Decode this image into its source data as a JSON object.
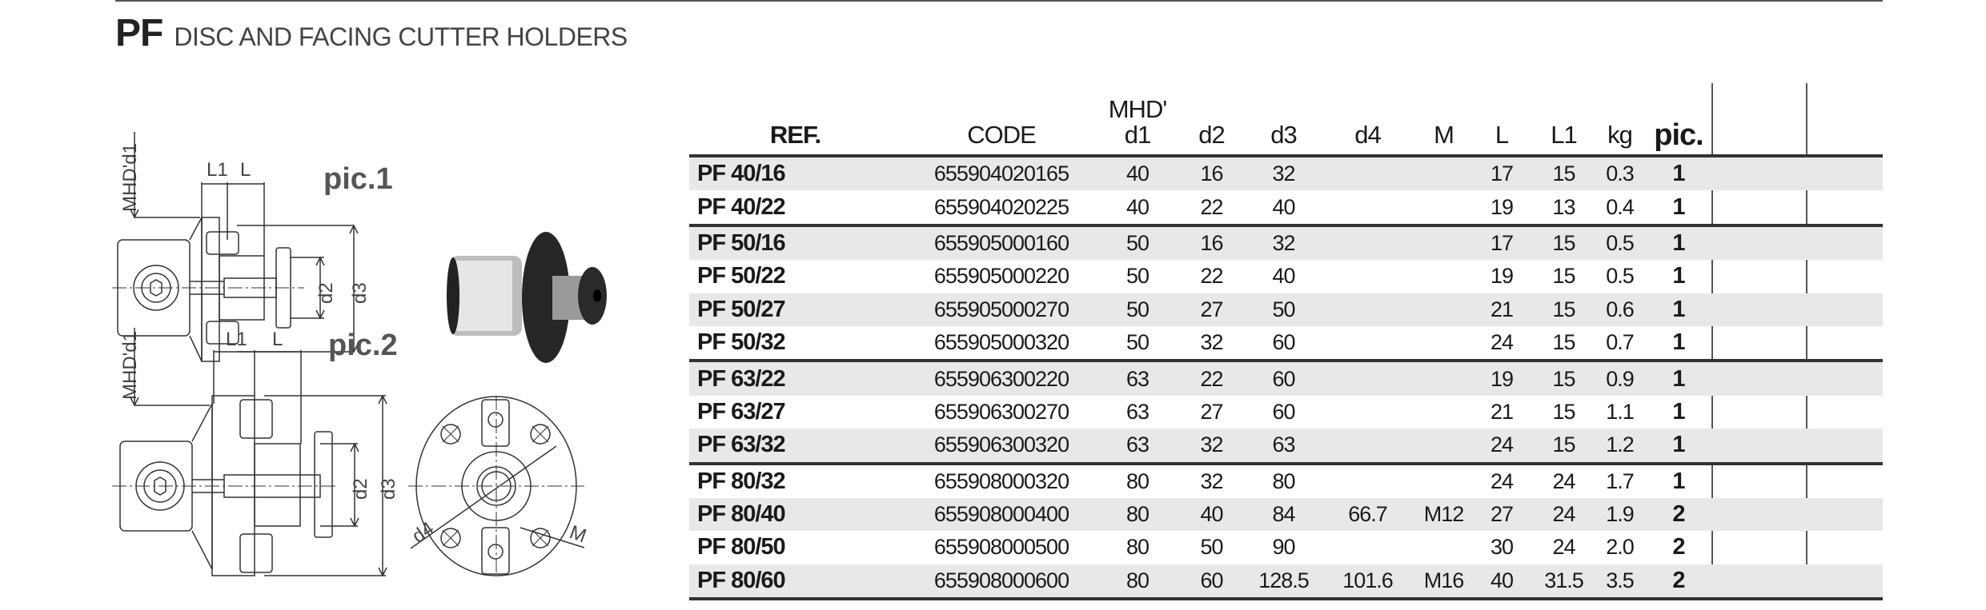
{
  "header": {
    "code": "PF",
    "title": "DISC AND FACING CUTTER HOLDERS"
  },
  "figures": {
    "pic1_label": "pic.1",
    "pic2_label": "pic.2",
    "dim_mhd": "MHD'd1",
    "dim_L1": "L1",
    "dim_L": "L",
    "dim_d2": "d2",
    "dim_d3": "d3",
    "dim_d4": "d4",
    "dim_M": "M"
  },
  "table": {
    "headers": {
      "ref": "REF.",
      "code": "CODE",
      "mhd_line1": "MHD'",
      "mhd_line2": "d1",
      "d2": "d2",
      "d3": "d3",
      "d4": "d4",
      "M": "M",
      "L": "L",
      "L1": "L1",
      "kg": "kg",
      "pic": "pic."
    },
    "rows": [
      {
        "ref": "PF 40/16",
        "code": "655904020165",
        "d1": "40",
        "d2": "16",
        "d3": "32",
        "d4": "",
        "M": "",
        "L": "17",
        "L1": "15",
        "kg": "0.3",
        "pic": "1"
      },
      {
        "ref": "PF 40/22",
        "code": "655904020225",
        "d1": "40",
        "d2": "22",
        "d3": "40",
        "d4": "",
        "M": "",
        "L": "19",
        "L1": "13",
        "kg": "0.4",
        "pic": "1"
      },
      {
        "ref": "PF 50/16",
        "code": "655905000160",
        "d1": "50",
        "d2": "16",
        "d3": "32",
        "d4": "",
        "M": "",
        "L": "17",
        "L1": "15",
        "kg": "0.5",
        "pic": "1"
      },
      {
        "ref": "PF 50/22",
        "code": "655905000220",
        "d1": "50",
        "d2": "22",
        "d3": "40",
        "d4": "",
        "M": "",
        "L": "19",
        "L1": "15",
        "kg": "0.5",
        "pic": "1"
      },
      {
        "ref": "PF 50/27",
        "code": "655905000270",
        "d1": "50",
        "d2": "27",
        "d3": "50",
        "d4": "",
        "M": "",
        "L": "21",
        "L1": "15",
        "kg": "0.6",
        "pic": "1"
      },
      {
        "ref": "PF 50/32",
        "code": "655905000320",
        "d1": "50",
        "d2": "32",
        "d3": "60",
        "d4": "",
        "M": "",
        "L": "24",
        "L1": "15",
        "kg": "0.7",
        "pic": "1"
      },
      {
        "ref": "PF 63/22",
        "code": "655906300220",
        "d1": "63",
        "d2": "22",
        "d3": "60",
        "d4": "",
        "M": "",
        "L": "19",
        "L1": "15",
        "kg": "0.9",
        "pic": "1"
      },
      {
        "ref": "PF 63/27",
        "code": "655906300270",
        "d1": "63",
        "d2": "27",
        "d3": "60",
        "d4": "",
        "M": "",
        "L": "21",
        "L1": "15",
        "kg": "1.1",
        "pic": "1"
      },
      {
        "ref": "PF 63/32",
        "code": "655906300320",
        "d1": "63",
        "d2": "32",
        "d3": "63",
        "d4": "",
        "M": "",
        "L": "24",
        "L1": "15",
        "kg": "1.2",
        "pic": "1"
      },
      {
        "ref": "PF 80/32",
        "code": "655908000320",
        "d1": "80",
        "d2": "32",
        "d3": "80",
        "d4": "",
        "M": "",
        "L": "24",
        "L1": "24",
        "kg": "1.7",
        "pic": "1"
      },
      {
        "ref": "PF 80/40",
        "code": "655908000400",
        "d1": "80",
        "d2": "40",
        "d3": "84",
        "d4": "66.7",
        "M": "M12",
        "L": "27",
        "L1": "24",
        "kg": "1.9",
        "pic": "2"
      },
      {
        "ref": "PF 80/50",
        "code": "655908000500",
        "d1": "80",
        "d2": "50",
        "d3": "90",
        "d4": "",
        "M": "",
        "L": "30",
        "L1": "24",
        "kg": "2.0",
        "pic": "2"
      },
      {
        "ref": "PF 80/60",
        "code": "655908000600",
        "d1": "80",
        "d2": "60",
        "d3": "128.5",
        "d4": "101.6",
        "M": "M16",
        "L": "40",
        "L1": "31.5",
        "kg": "3.5",
        "pic": "2"
      }
    ]
  }
}
